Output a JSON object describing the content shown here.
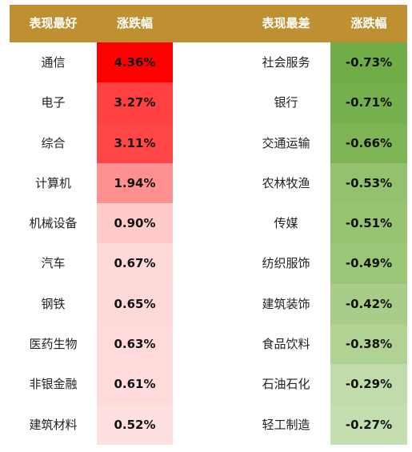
{
  "header": {
    "best_label": "表现最好",
    "best_change_label": "涨跌幅",
    "worst_label": "表现最差",
    "worst_change_label": "涨跌幅"
  },
  "best": [
    {
      "name": "通信",
      "change": "4.36%",
      "color": "#ff0000"
    },
    {
      "name": "电子",
      "change": "3.27%",
      "color": "#ff4040"
    },
    {
      "name": "综合",
      "change": "3.11%",
      "color": "#ff4646"
    },
    {
      "name": "计算机",
      "change": "1.94%",
      "color": "#ff9090"
    },
    {
      "name": "机械设备",
      "change": "0.90%",
      "color": "#ffcaca"
    },
    {
      "name": "汽车",
      "change": "0.67%",
      "color": "#ffd8d8"
    },
    {
      "name": "钢铁",
      "change": "0.65%",
      "color": "#ffd9d9"
    },
    {
      "name": "医药生物",
      "change": "0.63%",
      "color": "#ffdada"
    },
    {
      "name": "非银金融",
      "change": "0.61%",
      "color": "#ffdbdb"
    },
    {
      "name": "建筑材料",
      "change": "0.52%",
      "color": "#ffe0e0"
    }
  ],
  "worst": [
    {
      "name": "社会服务",
      "change": "-0.73%",
      "color": "#70ad47"
    },
    {
      "name": "银行",
      "change": "-0.71%",
      "color": "#74b04c"
    },
    {
      "name": "交通运输",
      "change": "-0.66%",
      "color": "#7db555"
    },
    {
      "name": "农林牧渔",
      "change": "-0.53%",
      "color": "#93c16e"
    },
    {
      "name": "传媒",
      "change": "-0.51%",
      "color": "#97c373"
    },
    {
      "name": "纺织服饰",
      "change": "-0.49%",
      "color": "#9bc678"
    },
    {
      "name": "建筑装饰",
      "change": "-0.42%",
      "color": "#a8cd89"
    },
    {
      "name": "食品饮料",
      "change": "-0.38%",
      "color": "#b0d293"
    },
    {
      "name": "石油石化",
      "change": "-0.29%",
      "color": "#c1dbab"
    },
    {
      "name": "轻工制造",
      "change": "-0.27%",
      "color": "#c5deb0"
    }
  ]
}
